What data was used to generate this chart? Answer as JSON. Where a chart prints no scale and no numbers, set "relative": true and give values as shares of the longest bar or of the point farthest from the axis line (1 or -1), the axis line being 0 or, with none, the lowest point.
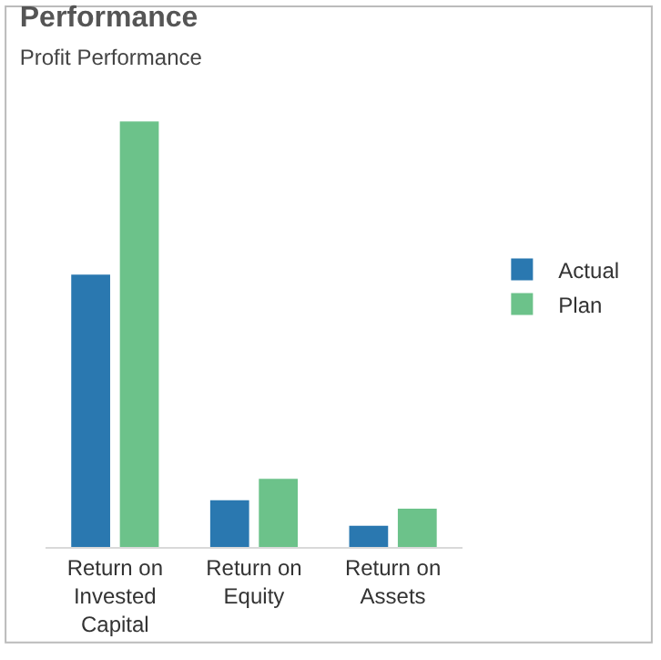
{
  "chart_data": {
    "type": "bar",
    "title": "Performance",
    "subtitle": "Profit Performance",
    "relative": true,
    "categories": [
      "Return on Invested Capital",
      "Return on Equity",
      "Return on Assets"
    ],
    "series": [
      {
        "name": "Actual",
        "color": "#2a78b0",
        "values": [
          0.64,
          0.11,
          0.05
        ]
      },
      {
        "name": "Plan",
        "color": "#6cc28a",
        "values": [
          1,
          0.16,
          0.09
        ]
      }
    ],
    "legend": "right"
  }
}
